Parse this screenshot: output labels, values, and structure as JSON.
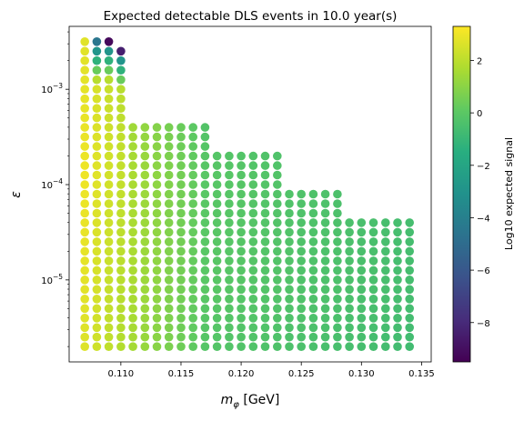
{
  "chart_data": {
    "type": "scatter",
    "title": "Expected detectable DLS events in 10.0 year(s)",
    "xlabel": "m",
    "xlabel_sub": "φ",
    "xlabel_unit": " [GeV]",
    "ylabel": "ε",
    "y_scale": "log",
    "xlim": [
      0.1057,
      0.1358
    ],
    "ylim_log10": [
      -5.86,
      -2.34
    ],
    "x_ticks": [
      0.11,
      0.115,
      0.12,
      0.125,
      0.13,
      0.135
    ],
    "x_tick_labels": [
      "0.110",
      "0.115",
      "0.120",
      "0.125",
      "0.130",
      "0.135"
    ],
    "y_ticks_log10": [
      -5,
      -4,
      -3
    ],
    "y_tick_labels": [
      {
        "base": "10",
        "exp": "−5"
      },
      {
        "base": "10",
        "exp": "−4"
      },
      {
        "base": "10",
        "exp": "−3"
      }
    ],
    "grid": false,
    "colormap": "viridis",
    "colorbar": {
      "label": "Log10 expected signal",
      "range": [
        -9.5,
        3.3
      ],
      "ticks": [
        2,
        0,
        -2,
        -4,
        -6,
        -8
      ],
      "tick_labels": [
        "2",
        "0",
        "−2",
        "−4",
        "−6",
        "−8"
      ]
    },
    "grid_points": {
      "x_start": 0.107,
      "x_step": 0.001,
      "x_count": 28,
      "log10_eps_min": -5.7,
      "log10_eps_step": 0.1,
      "column_top_log10": [
        -2.5,
        -2.5,
        -2.5,
        -2.6,
        -3.4,
        -3.4,
        -3.4,
        -3.4,
        -3.4,
        -3.4,
        -3.4,
        -3.7,
        -3.7,
        -3.7,
        -3.7,
        -3.7,
        -3.7,
        -4.1,
        -4.1,
        -4.1,
        -4.1,
        -4.1,
        -4.4,
        -4.4,
        -4.4,
        -4.4,
        -4.4,
        -4.4
      ],
      "purple_tips": [
        {
          "x": 0.109,
          "log10_eps": -2.5,
          "value": -9.2
        },
        {
          "x": 0.11,
          "log10_eps": -2.6,
          "value": -8.4
        }
      ]
    }
  }
}
